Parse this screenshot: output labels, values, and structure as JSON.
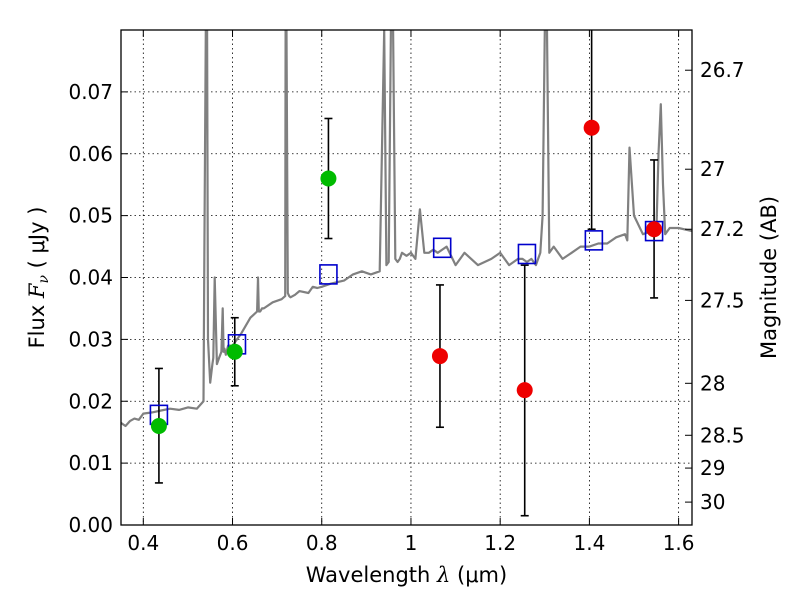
{
  "chart_data": {
    "type": "scatter",
    "xlabel": "Wavelength  λ (μm)",
    "xlabel_parts": {
      "pre": "Wavelength  ",
      "sym": "λ",
      "post": " (μm)"
    },
    "ylabel_parts": {
      "pre": "Flux  ",
      "sym": "F",
      "sub": "ν",
      "post": "  ( μJy )"
    },
    "ylabel_right": "Magnitude (AB)",
    "xlim": [
      0.35,
      1.63
    ],
    "ylim": [
      0.0,
      0.08
    ],
    "x_ticks": [
      0.4,
      0.6,
      0.8,
      1.0,
      1.2,
      1.4,
      1.6
    ],
    "x_tick_labels": [
      "0.4",
      "0.6",
      "0.8",
      "1",
      "1.2",
      "1.4",
      "1.6"
    ],
    "y_ticks": [
      0.0,
      0.01,
      0.02,
      0.03,
      0.04,
      0.05,
      0.06,
      0.07
    ],
    "y_tick_labels": [
      "0.00",
      "0.01",
      "0.02",
      "0.03",
      "0.04",
      "0.05",
      "0.06",
      "0.07"
    ],
    "right_ticks": [
      {
        "label": "26.7",
        "flux": 0.0735
      },
      {
        "label": "27",
        "flux": 0.0575
      },
      {
        "label": "27.2",
        "flux": 0.0478
      },
      {
        "label": "27.5",
        "flux": 0.0363
      },
      {
        "label": "28",
        "flux": 0.0229
      },
      {
        "label": "28.5",
        "flux": 0.0145
      },
      {
        "label": "29",
        "flux": 0.0092
      },
      {
        "label": "30",
        "flux": 0.0037
      }
    ],
    "grid": true,
    "colors": {
      "sed": "#808080",
      "model": "#0000cc",
      "detection": "#00bb00",
      "nondetection": "#ee0000",
      "errorbar": "#000000"
    },
    "sed_series": {
      "x": [
        0.35,
        0.36,
        0.37,
        0.38,
        0.39,
        0.4,
        0.42,
        0.44,
        0.46,
        0.48,
        0.5,
        0.52,
        0.535,
        0.537,
        0.54,
        0.543,
        0.545,
        0.55,
        0.555,
        0.557,
        0.56,
        0.565,
        0.57,
        0.575,
        0.578,
        0.58,
        0.582,
        0.585,
        0.59,
        0.6,
        0.61,
        0.62,
        0.64,
        0.655,
        0.657,
        0.659,
        0.662,
        0.666,
        0.67,
        0.69,
        0.71,
        0.718,
        0.719,
        0.721,
        0.724,
        0.727,
        0.73,
        0.74,
        0.75,
        0.77,
        0.78,
        0.79,
        0.8,
        0.82,
        0.85,
        0.87,
        0.89,
        0.91,
        0.93,
        0.94,
        0.945,
        0.95,
        0.955,
        0.96,
        0.965,
        0.97,
        0.975,
        0.98,
        0.99,
        1.0,
        1.01,
        1.02,
        1.03,
        1.04,
        1.05,
        1.06,
        1.08,
        1.1,
        1.12,
        1.15,
        1.18,
        1.2,
        1.22,
        1.24,
        1.25,
        1.26,
        1.27,
        1.28,
        1.29,
        1.295,
        1.3,
        1.305,
        1.31,
        1.32,
        1.34,
        1.36,
        1.38,
        1.4,
        1.42,
        1.44,
        1.46,
        1.48,
        1.485,
        1.49,
        1.5,
        1.52,
        1.54,
        1.55,
        1.555,
        1.56,
        1.565,
        1.57,
        1.58,
        1.6,
        1.63
      ],
      "y": [
        0.0165,
        0.016,
        0.0168,
        0.0172,
        0.017,
        0.018,
        0.0182,
        0.0185,
        0.0188,
        0.0186,
        0.019,
        0.0188,
        0.02,
        0.045,
        0.08,
        0.08,
        0.03,
        0.023,
        0.026,
        0.027,
        0.04,
        0.026,
        0.027,
        0.028,
        0.035,
        0.028,
        0.0285,
        0.0275,
        0.029,
        0.029,
        0.03,
        0.031,
        0.0335,
        0.0345,
        0.04,
        0.0345,
        0.0345,
        0.035,
        0.035,
        0.036,
        0.0365,
        0.037,
        0.08,
        0.08,
        0.0375,
        0.037,
        0.0368,
        0.0372,
        0.0378,
        0.0375,
        0.0385,
        0.0383,
        0.0385,
        0.039,
        0.0395,
        0.0405,
        0.041,
        0.0405,
        0.041,
        0.08,
        0.042,
        0.0425,
        0.08,
        0.08,
        0.043,
        0.0425,
        0.043,
        0.044,
        0.0435,
        0.044,
        0.043,
        0.051,
        0.044,
        0.044,
        0.0445,
        0.044,
        0.045,
        0.042,
        0.044,
        0.042,
        0.043,
        0.044,
        0.042,
        0.043,
        0.043,
        0.0425,
        0.043,
        0.042,
        0.044,
        0.05,
        0.08,
        0.08,
        0.044,
        0.045,
        0.043,
        0.044,
        0.045,
        0.045,
        0.0455,
        0.0455,
        0.0465,
        0.047,
        0.046,
        0.061,
        0.05,
        0.047,
        0.0475,
        0.047,
        0.06,
        0.068,
        0.055,
        0.047,
        0.048,
        0.048,
        0.0475
      ]
    },
    "model_squares": {
      "x": [
        0.435,
        0.61,
        0.815,
        1.07,
        1.26,
        1.41,
        1.545
      ],
      "y": [
        0.0178,
        0.0292,
        0.0405,
        0.0448,
        0.0438,
        0.046,
        0.0475
      ]
    },
    "detections": {
      "x": [
        0.435,
        0.605,
        0.815
      ],
      "y": [
        0.016,
        0.028,
        0.056
      ],
      "err_low": [
        0.0068,
        0.0225,
        0.0463
      ],
      "err_high": [
        0.0253,
        0.0335,
        0.0657
      ]
    },
    "nondetections": {
      "x": [
        1.065,
        1.255,
        1.405,
        1.545
      ],
      "y": [
        0.0273,
        0.0218,
        0.0642,
        0.0478
      ],
      "err_low": [
        0.0158,
        0.0015,
        0.0478,
        0.0367
      ],
      "err_high": [
        0.0388,
        0.042,
        0.08,
        0.059
      ]
    }
  }
}
